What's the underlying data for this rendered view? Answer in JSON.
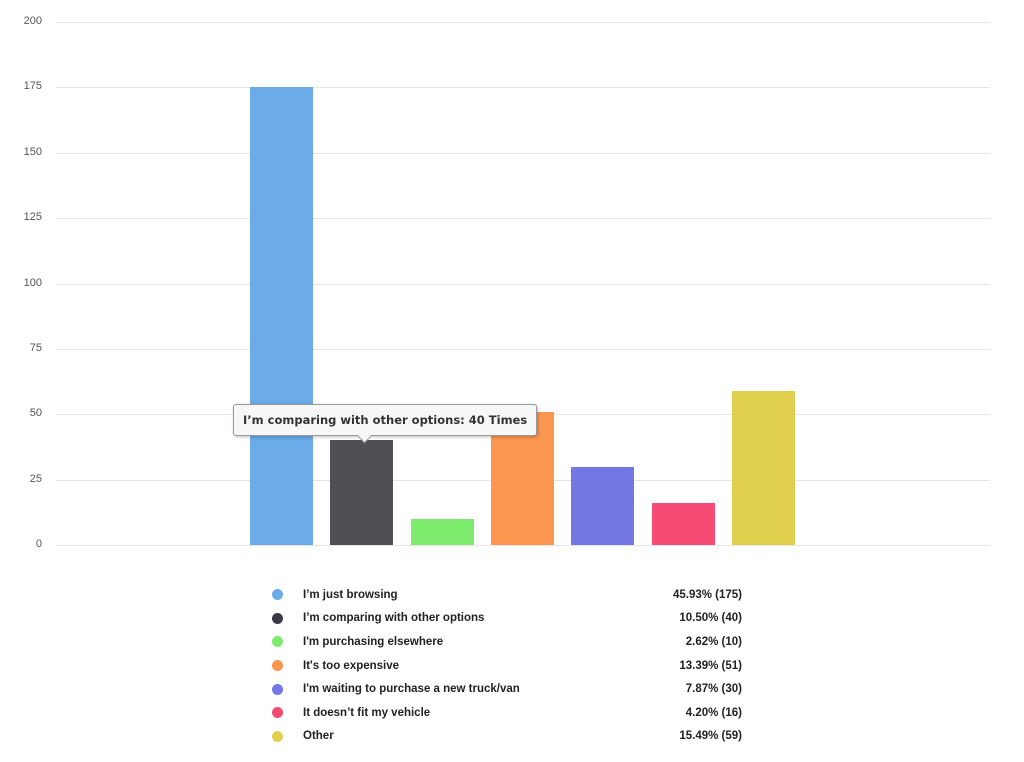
{
  "chart_data": {
    "type": "bar",
    "title": "",
    "xlabel": "",
    "ylabel": "",
    "ylim": [
      0,
      200
    ],
    "yticks": [
      0,
      25,
      50,
      75,
      100,
      125,
      150,
      175,
      200
    ],
    "grid": true,
    "legend_position": "bottom",
    "categories": [
      "I’m just browsing",
      "I’m comparing with other options",
      "I'm purchasing elsewhere",
      "It's too expensive",
      "I'm waiting to purchase a new truck/van",
      "It doesn’t fit my vehicle",
      "Other"
    ],
    "values": [
      175,
      40,
      10,
      51,
      30,
      16,
      59
    ],
    "percentages": [
      "45.93%",
      "10.50%",
      "2.62%",
      "13.39%",
      "7.87%",
      "4.20%",
      "15.49%"
    ],
    "colors": [
      "#6aabe8",
      "#4f4f55",
      "#7eeb6f",
      "#fb9651",
      "#7277e3",
      "#f54b74",
      "#e1cf4e"
    ],
    "annotations": [
      {
        "type": "tooltip",
        "text": "I’m comparing with other options: 40 Times",
        "target_index": 1
      }
    ]
  },
  "axis": {
    "y_labels": [
      "200",
      "175",
      "150",
      "125",
      "100",
      "75",
      "50",
      "25",
      "0"
    ]
  },
  "tooltip": {
    "text": "I’m comparing with other options: 40 Times"
  },
  "legend": {
    "items": [
      {
        "label": "I’m just browsing",
        "value": "45.93% (175)",
        "color": "#6aabe8"
      },
      {
        "label": "I’m comparing with other options",
        "value": "10.50% (40)",
        "color": "#3a3a44"
      },
      {
        "label": "I'm purchasing elsewhere",
        "value": "2.62% (10)",
        "color": "#7eeb6f"
      },
      {
        "label": "It's too expensive",
        "value": "13.39% (51)",
        "color": "#fb9651"
      },
      {
        "label": "I'm waiting to purchase a new truck/van",
        "value": "7.87% (30)",
        "color": "#7277e3"
      },
      {
        "label": "It doesn’t fit my vehicle",
        "value": "4.20% (16)",
        "color": "#f54b74"
      },
      {
        "label": "Other",
        "value": "15.49% (59)",
        "color": "#e1cf4e"
      }
    ]
  }
}
